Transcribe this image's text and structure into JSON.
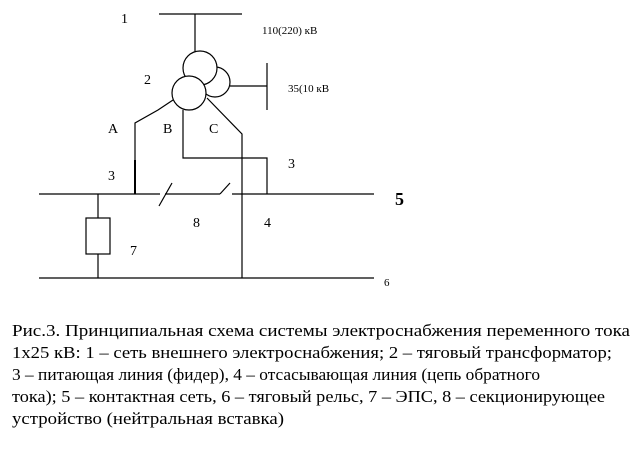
{
  "diagram": {
    "labels": {
      "n1": "1",
      "hv": "110(220) кВ",
      "n2": "2",
      "mv": "35(10 кВ",
      "a": "A",
      "b": "B",
      "c": "C",
      "n3_left": "3",
      "n3_right": "3",
      "n5": "5",
      "n8": "8",
      "n4": "4",
      "n7": "7",
      "n6": "6"
    }
  },
  "caption": {
    "lines": [
      "Рис.3. Принципиальная схема системы электроснабжения  переменного тока",
      "1х25 кВ: 1 – сеть внешнего электроснабжения; 2 – тяговый трансформатор;",
      "3 – питающая линия (фидер), 4 – отсасывающая линия (цепь обратного",
      "тока); 5 – контактная сеть, 6 – тяговый рельс, 7 – ЭПС, 8 – секционирующее",
      "устройство (нейтральная вставка)"
    ]
  }
}
